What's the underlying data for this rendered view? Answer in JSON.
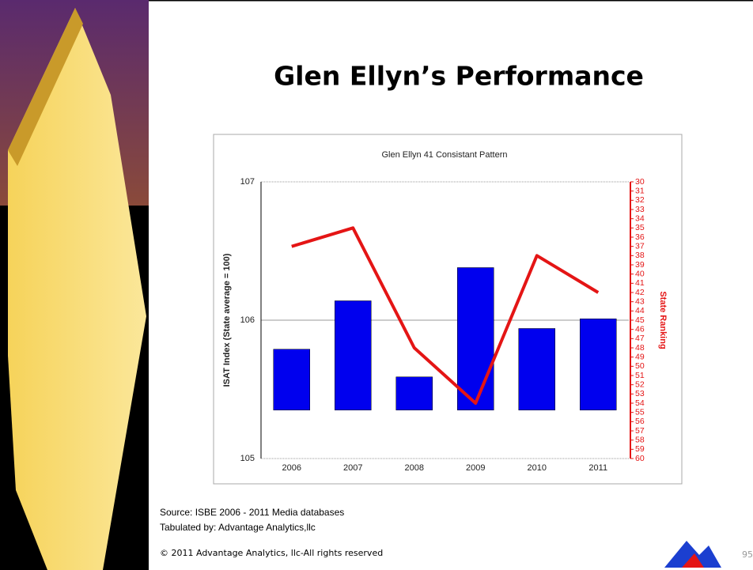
{
  "title": "Glen Ellyn’s Performance",
  "chart_data": {
    "type": "combo",
    "title": "Glen Ellyn 41 Consistant Pattern",
    "categories": [
      "2006",
      "2007",
      "2008",
      "2009",
      "2010",
      "2011"
    ],
    "y_label": "ISAT Index (State average = 100)",
    "y2_label": "State Ranking",
    "ylim": [
      105,
      107
    ],
    "yticks": [
      105,
      106,
      107
    ],
    "y2lim": [
      30,
      60
    ],
    "y2_inverted": true,
    "y2ticks": [
      30,
      31,
      32,
      33,
      34,
      35,
      36,
      37,
      38,
      39,
      40,
      41,
      42,
      43,
      44,
      45,
      46,
      47,
      48,
      49,
      50,
      51,
      52,
      53,
      54,
      55,
      56,
      57,
      58,
      59,
      60
    ],
    "grid": true,
    "series": [
      {
        "type": "bar",
        "color": "#0000ee",
        "base": 105.35,
        "values": [
          105.79,
          106.14,
          105.59,
          106.38,
          105.94,
          106.01
        ]
      },
      {
        "type": "line",
        "axis": "y2",
        "color": "#e41515",
        "values": [
          37,
          35,
          48,
          54,
          38,
          42
        ]
      }
    ]
  },
  "source": [
    "Source: ISBE 2006 - 2011 Media databases",
    "Tabulated by: Advantage Analytics,llc"
  ],
  "copyright": "© 2011 Advantage Analytics, llc-All rights reserved",
  "page_number": "95"
}
